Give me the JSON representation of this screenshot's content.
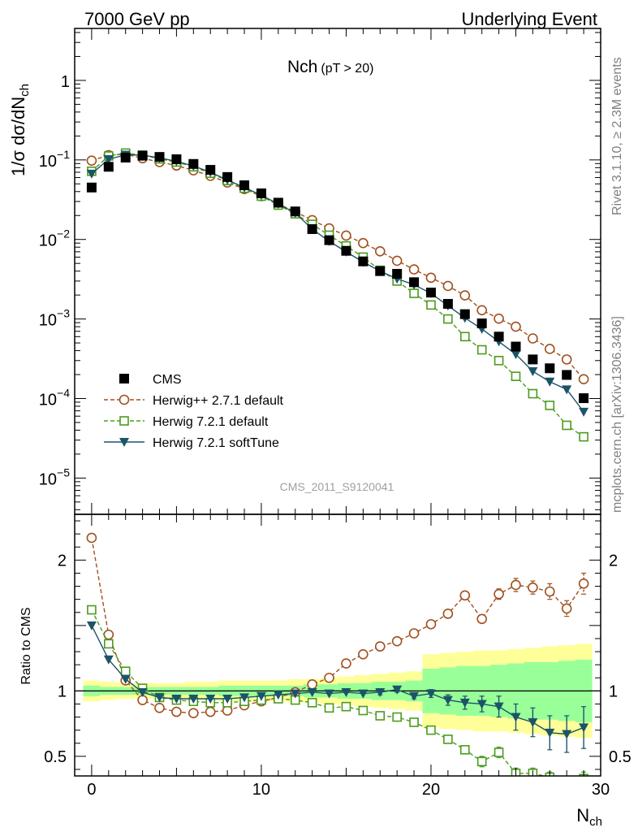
{
  "header": {
    "left": "7000 GeV pp",
    "right": "Underlying Event"
  },
  "side": {
    "rivet": "Rivet 3.1.10, ≥ 2.3M events",
    "mcplots": "mcplots.cern.ch [arXiv:1306.3436]"
  },
  "plot_title": {
    "main": "Nch",
    "sub": "(pT > 20)"
  },
  "watermark": "CMS_2011_S9120041",
  "chart_data": [
    {
      "type": "scatter",
      "panel": "main",
      "ylabel_parts": {
        "pre": "1/σ dσ/dN",
        "sub": "ch"
      },
      "yscale": "log",
      "ylim": [
        3.5e-06,
        4.5
      ],
      "xlim": [
        -1,
        30
      ],
      "yticks": [
        {
          "value": 1,
          "base": "1",
          "exp": ""
        },
        {
          "value": 0.1,
          "base": "10",
          "exp": "−1"
        },
        {
          "value": 0.01,
          "base": "10",
          "exp": "−2"
        },
        {
          "value": 0.001,
          "base": "10",
          "exp": "−3"
        },
        {
          "value": 0.0001,
          "base": "10",
          "exp": "−4"
        },
        {
          "value": 1e-05,
          "base": "10",
          "exp": "−5"
        }
      ],
      "legend": [
        {
          "label": "CMS",
          "color": "#000000",
          "marker": "square-filled",
          "line": "none"
        },
        {
          "label": "Herwig++ 2.7.1 default",
          "color": "#a0501e",
          "marker": "circle-open",
          "line": "dashed"
        },
        {
          "label": "Herwig 7.2.1 default",
          "color": "#4b9b1e",
          "marker": "square-open",
          "line": "dashed"
        },
        {
          "label": "Herwig 7.2.1 softTune",
          "color": "#1b5468",
          "marker": "triangle-down-filled",
          "line": "solid"
        }
      ],
      "x": [
        0,
        1,
        2,
        3,
        4,
        5,
        6,
        7,
        8,
        9,
        10,
        11,
        12,
        13,
        14,
        15,
        16,
        17,
        18,
        19,
        20,
        21,
        22,
        23,
        24,
        25,
        26,
        27,
        28,
        29
      ],
      "series": [
        {
          "name": "CMS",
          "values": [
            0.045,
            0.082,
            0.107,
            0.113,
            0.109,
            0.102,
            0.089,
            0.075,
            0.061,
            0.048,
            0.038,
            0.029,
            0.0225,
            0.0135,
            0.0098,
            0.0072,
            0.0053,
            0.004,
            0.0037,
            0.0029,
            0.00215,
            0.00155,
            0.00115,
            0.00088,
            0.0006,
            0.00045,
            0.00031,
            0.00024,
            0.000198,
            0.000101
          ]
        },
        {
          "name": "Herwig++ 2.7.1 default",
          "values": [
            0.098,
            0.115,
            0.118,
            0.105,
            0.094,
            0.085,
            0.074,
            0.063,
            0.052,
            0.043,
            0.035,
            0.028,
            0.0223,
            0.0175,
            0.0138,
            0.0112,
            0.009,
            0.0071,
            0.0054,
            0.0042,
            0.0033,
            0.0026,
            0.00198,
            0.00129,
            0.00101,
            0.0008,
            0.00057,
            0.00042,
            0.00031,
            0.000175
          ]
        },
        {
          "name": "Herwig 7.2.1 default",
          "values": [
            0.072,
            0.112,
            0.122,
            0.115,
            0.103,
            0.094,
            0.082,
            0.068,
            0.055,
            0.044,
            0.035,
            0.027,
            0.021,
            0.0155,
            0.0113,
            0.0083,
            0.006,
            0.0041,
            0.003,
            0.0021,
            0.0015,
            0.001,
            0.0006,
            0.00041,
            0.0003,
            0.00019,
            0.000115,
            8.2e-05,
            4.6e-05,
            3.3e-05
          ]
        },
        {
          "name": "Herwig 7.2.1 softTune",
          "values": [
            0.067,
            0.102,
            0.116,
            0.115,
            0.106,
            0.096,
            0.084,
            0.07,
            0.056,
            0.045,
            0.036,
            0.028,
            0.0215,
            0.0135,
            0.0095,
            0.007,
            0.0052,
            0.004,
            0.0032,
            0.0027,
            0.0021,
            0.00147,
            0.00103,
            0.00075,
            0.00052,
            0.00036,
            0.00022,
            0.000163,
            0.00013,
            6.8e-05
          ]
        }
      ]
    },
    {
      "type": "line",
      "panel": "ratio",
      "ylabel": "Ratio to CMS",
      "xlabel_parts": {
        "pre": "N",
        "sub": "ch"
      },
      "ylim": [
        0.35,
        2.35
      ],
      "xlim": [
        -1,
        30
      ],
      "xticks": [
        0,
        10,
        20,
        30
      ],
      "yticks": [
        0.5,
        1,
        2
      ],
      "band_yellow_halfwidth": [
        0.08,
        0.07,
        0.06,
        0.06,
        0.06,
        0.06,
        0.07,
        0.07,
        0.08,
        0.08,
        0.08,
        0.08,
        0.09,
        0.09,
        0.1,
        0.11,
        0.12,
        0.13,
        0.14,
        0.15,
        0.28,
        0.29,
        0.3,
        0.31,
        0.31,
        0.32,
        0.33,
        0.34,
        0.35,
        0.36
      ],
      "band_green_halfwidth": [
        0.04,
        0.03,
        0.03,
        0.03,
        0.03,
        0.03,
        0.03,
        0.03,
        0.04,
        0.04,
        0.04,
        0.04,
        0.04,
        0.05,
        0.05,
        0.06,
        0.06,
        0.07,
        0.07,
        0.08,
        0.17,
        0.18,
        0.19,
        0.19,
        0.2,
        0.21,
        0.22,
        0.22,
        0.23,
        0.24
      ],
      "x": [
        0,
        1,
        2,
        3,
        4,
        5,
        6,
        7,
        8,
        9,
        10,
        11,
        12,
        13,
        14,
        15,
        16,
        17,
        18,
        19,
        20,
        21,
        22,
        23,
        24,
        25,
        26,
        27,
        28,
        29
      ],
      "series": [
        {
          "name": "Herwig++ 2.7.1 default",
          "values": [
            2.17,
            1.43,
            1.08,
            0.93,
            0.87,
            0.84,
            0.83,
            0.84,
            0.85,
            0.89,
            0.92,
            0.95,
            0.99,
            1.05,
            1.1,
            1.21,
            1.28,
            1.34,
            1.38,
            1.44,
            1.51,
            1.59,
            1.73,
            1.55,
            1.74,
            1.81,
            1.79,
            1.76,
            1.63,
            1.82
          ],
          "err": [
            0.01,
            0.01,
            0.01,
            0.01,
            0.01,
            0.01,
            0.01,
            0.01,
            0.01,
            0.01,
            0.01,
            0.01,
            0.01,
            0.01,
            0.01,
            0.01,
            0.01,
            0.02,
            0.02,
            0.02,
            0.02,
            0.03,
            0.03,
            0.03,
            0.04,
            0.05,
            0.05,
            0.06,
            0.06,
            0.08
          ]
        },
        {
          "name": "Herwig 7.2.1 default",
          "values": [
            1.62,
            1.36,
            1.15,
            1.02,
            0.95,
            0.93,
            0.92,
            0.91,
            0.91,
            0.92,
            0.93,
            0.94,
            0.93,
            0.91,
            0.87,
            0.88,
            0.85,
            0.81,
            0.8,
            0.76,
            0.7,
            0.63,
            0.55,
            0.46,
            0.53,
            0.37,
            0.37,
            0.34,
            0.23,
            0.33
          ],
          "err": [
            0.01,
            0.01,
            0.01,
            0.01,
            0.01,
            0.01,
            0.01,
            0.01,
            0.01,
            0.01,
            0.01,
            0.01,
            0.01,
            0.01,
            0.01,
            0.01,
            0.01,
            0.01,
            0.01,
            0.01,
            0.02,
            0.02,
            0.03,
            0.04,
            0.04,
            0.04,
            0.04,
            0.04,
            0.04,
            0.05
          ]
        },
        {
          "name": "Herwig 7.2.1 softTune",
          "values": [
            1.5,
            1.24,
            1.09,
            0.99,
            0.95,
            0.94,
            0.94,
            0.94,
            0.94,
            0.95,
            0.96,
            0.97,
            0.98,
            0.99,
            0.98,
            0.99,
            0.98,
            0.99,
            1.01,
            0.96,
            0.98,
            0.93,
            0.91,
            0.9,
            0.88,
            0.8,
            0.76,
            0.68,
            0.67,
            0.72
          ],
          "err": [
            0.01,
            0.01,
            0.01,
            0.01,
            0.01,
            0.01,
            0.01,
            0.01,
            0.01,
            0.01,
            0.01,
            0.01,
            0.01,
            0.01,
            0.01,
            0.01,
            0.01,
            0.02,
            0.02,
            0.02,
            0.03,
            0.04,
            0.05,
            0.06,
            0.08,
            0.1,
            0.11,
            0.13,
            0.14,
            0.16
          ]
        }
      ]
    }
  ]
}
